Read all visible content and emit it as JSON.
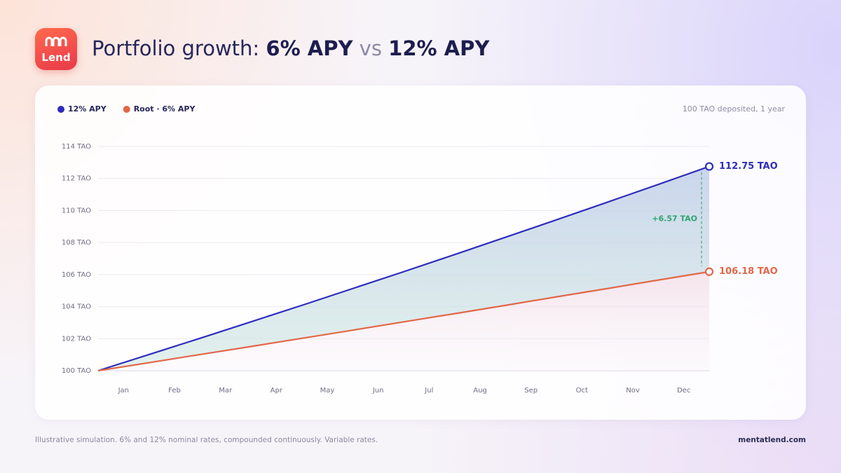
{
  "logo": "Lend",
  "title": {
    "lead": "Portfolio growth:",
    "a": "6% APY",
    "join": "vs",
    "b": "12% APY"
  },
  "chart_data": {
    "type": "line",
    "subtitle": "100 TAO deposited, 1 year",
    "categories": [
      "Jan",
      "Feb",
      "Mar",
      "Apr",
      "May",
      "Jun",
      "Jul",
      "Aug",
      "Sep",
      "Oct",
      "Nov",
      "Dec"
    ],
    "x": [
      0,
      1,
      2,
      3,
      4,
      5,
      6,
      7,
      8,
      9,
      10,
      11,
      12
    ],
    "xlim": [
      0,
      12
    ],
    "ylim": [
      100,
      114
    ],
    "yticks": [
      {
        "value": 100,
        "label": "100 TAO"
      },
      {
        "value": 102,
        "label": "102 TAO"
      },
      {
        "value": 104,
        "label": "104 TAO"
      },
      {
        "value": 106,
        "label": "106 TAO"
      },
      {
        "value": 108,
        "label": "108 TAO"
      },
      {
        "value": 110,
        "label": "110 TAO"
      },
      {
        "value": 112,
        "label": "112 TAO"
      },
      {
        "value": 114,
        "label": "114 TAO"
      }
    ],
    "grid": true,
    "legend": "top-left",
    "series": [
      {
        "name": "12% APY",
        "color": "#2e2dbd",
        "values": [
          100,
          101.01,
          102.02,
          103.05,
          104.08,
          105.13,
          106.18,
          107.25,
          108.33,
          109.42,
          110.52,
          111.63,
          112.75
        ],
        "end_label": "112.75 TAO"
      },
      {
        "name": "Root · 6% APY",
        "color": "#e2674a",
        "values": [
          100,
          100.5,
          101.01,
          101.51,
          102.02,
          102.53,
          103.05,
          103.56,
          104.08,
          104.61,
          105.13,
          105.66,
          106.18
        ],
        "end_label": "106.18 TAO"
      }
    ],
    "annotation": "+6.57 TAO"
  },
  "footer": {
    "note": "Illustrative simulation. 6% and 12% nominal rates, compounded continuously. Variable rates.",
    "site": "mentatlend.com"
  }
}
